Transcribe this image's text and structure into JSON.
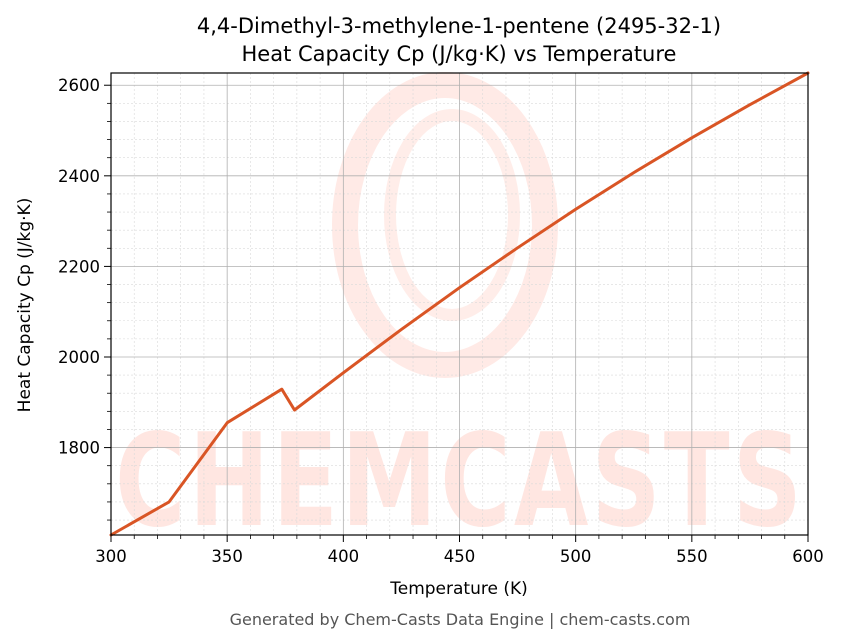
{
  "chart_data": {
    "type": "line",
    "title": "4,4-Dimethyl-3-methylene-1-pentene (2495-32-1)",
    "subtitle": "Heat Capacity Cp (J/kg·K) vs Temperature",
    "xlabel": "Temperature (K)",
    "ylabel": "Heat Capacity Cp (J/kg·K)",
    "xlim": [
      300,
      600
    ],
    "ylim": [
      1607,
      2627
    ],
    "xticks": [
      300,
      350,
      400,
      450,
      500,
      550,
      600
    ],
    "yticks": [
      1800,
      2000,
      2200,
      2400,
      2600
    ],
    "grid": true,
    "series": [
      {
        "color": "#d95525",
        "points": [
          [
            300,
            1607
          ],
          [
            325,
            1680
          ],
          [
            350,
            1855
          ],
          [
            373.5,
            1929
          ],
          [
            379,
            1883
          ],
          [
            400,
            1965
          ],
          [
            425,
            2061
          ],
          [
            450,
            2153
          ],
          [
            475,
            2241
          ],
          [
            500,
            2326
          ],
          [
            525,
            2407
          ],
          [
            550,
            2484
          ],
          [
            575,
            2557
          ],
          [
            600,
            2627
          ]
        ]
      }
    ]
  },
  "footer": "Generated by Chem-Casts Data Engine | chem-casts.com",
  "watermark": {
    "text": "CHEMCASTS",
    "color": "#ff6a4d"
  }
}
